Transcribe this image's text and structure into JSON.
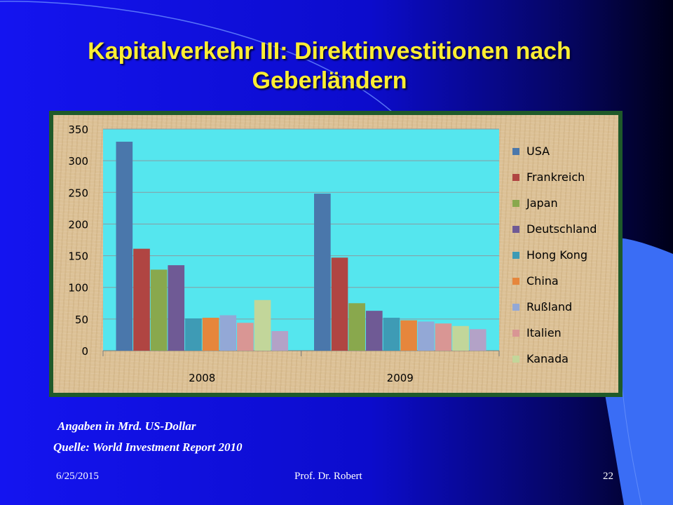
{
  "slide": {
    "title": "Kapitalverkehr III: Direktinvestitionen nach Geberländern",
    "note_units": "Angaben in Mrd. US-Dollar",
    "note_source": "Quelle: World Investment Report 2010",
    "footer_date": "6/25/2015",
    "footer_author": "Prof. Dr. Robert",
    "footer_page": "22"
  },
  "chart_data": {
    "type": "bar",
    "categories": [
      "2008",
      "2009"
    ],
    "ylim": [
      0,
      350
    ],
    "yticks": [
      0,
      50,
      100,
      150,
      200,
      250,
      300,
      350
    ],
    "grid": true,
    "legend_position": "right",
    "plot_background": "#55e6ee",
    "series": [
      {
        "name": "USA",
        "color": "#4a77ab",
        "values": [
          330,
          248
        ]
      },
      {
        "name": "Frankreich",
        "color": "#b04542",
        "values": [
          161,
          147
        ]
      },
      {
        "name": "Japan",
        "color": "#89a84d",
        "values": [
          128,
          75
        ]
      },
      {
        "name": "Deutschland",
        "color": "#6f5a95",
        "values": [
          135,
          63
        ]
      },
      {
        "name": "Hong Kong",
        "color": "#3e9bb5",
        "values": [
          51,
          52
        ]
      },
      {
        "name": "China",
        "color": "#e6863c",
        "values": [
          52,
          48
        ]
      },
      {
        "name": "Rußland",
        "color": "#93a8d6",
        "values": [
          56,
          46
        ]
      },
      {
        "name": "Italien",
        "color": "#d99694",
        "values": [
          44,
          43
        ]
      },
      {
        "name": "Kanada",
        "color": "#c2d69a",
        "values": [
          80,
          39
        ]
      },
      {
        "name": "",
        "color": "#b3a2c7",
        "values": [
          31,
          34
        ]
      }
    ]
  }
}
